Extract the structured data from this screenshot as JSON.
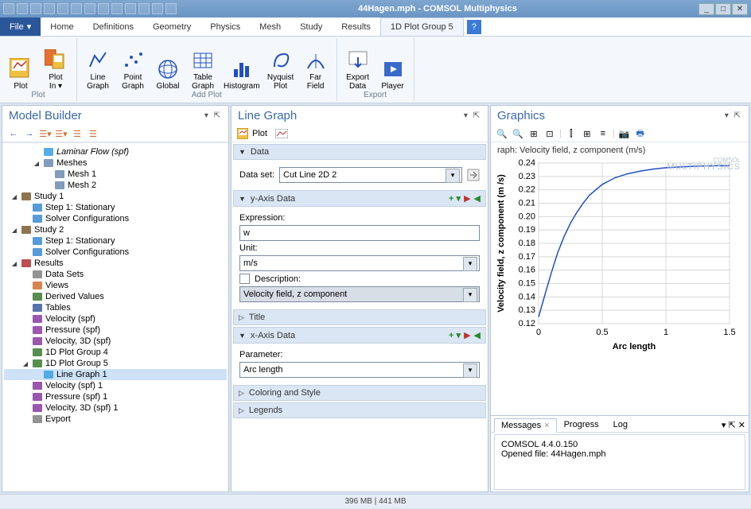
{
  "titlebar": {
    "title": "44Hagen.mph - COMSOL Multiphysics"
  },
  "menu": {
    "file": "File",
    "tabs": [
      "Home",
      "Definitions",
      "Geometry",
      "Physics",
      "Mesh",
      "Study",
      "Results"
    ],
    "active_tab": "1D Plot Group 5"
  },
  "ribbon": {
    "groups": [
      {
        "name": "Plot",
        "items": [
          {
            "l": "Plot"
          },
          {
            "l": "Plot\nIn"
          }
        ]
      },
      {
        "name": "Add Plot",
        "items": [
          {
            "l": "Line\nGraph"
          },
          {
            "l": "Point\nGraph"
          },
          {
            "l": "Global"
          },
          {
            "l": "Table\nGraph"
          },
          {
            "l": "Histogram"
          },
          {
            "l": "Nyquist\nPlot"
          },
          {
            "l": "Far\nField"
          }
        ]
      },
      {
        "name": "Export",
        "items": [
          {
            "l": "Export\nData"
          },
          {
            "l": "Player"
          }
        ]
      }
    ]
  },
  "model_builder": {
    "title": "Model Builder",
    "tree": [
      {
        "d": 2,
        "t": "",
        "l": "Laminar Flow (spf)",
        "it": 1,
        "c": "#3aa0e0"
      },
      {
        "d": 2,
        "t": "▲",
        "l": "Meshes",
        "c": "#6b8bb0"
      },
      {
        "d": 3,
        "t": "",
        "l": "Mesh 1",
        "c": "#6b8bb0"
      },
      {
        "d": 3,
        "t": "",
        "l": "Mesh 2",
        "c": "#6b8bb0"
      },
      {
        "d": 0,
        "t": "▲",
        "l": "Study 1",
        "c": "#7a5a30"
      },
      {
        "d": 1,
        "t": "",
        "l": "Step 1: Stationary",
        "c": "#3a8ad0"
      },
      {
        "d": 1,
        "t": "",
        "l": "Solver Configurations",
        "c": "#3a8ad0"
      },
      {
        "d": 0,
        "t": "▲",
        "l": "Study 2",
        "c": "#7a5a30"
      },
      {
        "d": 1,
        "t": "",
        "l": "Step 1: Stationary",
        "c": "#3a8ad0"
      },
      {
        "d": 1,
        "t": "",
        "l": "Solver Configurations",
        "c": "#3a8ad0"
      },
      {
        "d": 0,
        "t": "▲",
        "l": "Results",
        "c": "#b03030"
      },
      {
        "d": 1,
        "t": "",
        "l": "Data Sets",
        "c": "#808080"
      },
      {
        "d": 1,
        "t": "",
        "l": "Views",
        "c": "#d07030"
      },
      {
        "d": 1,
        "t": "",
        "l": "Derived Values",
        "c": "#3a7a30"
      },
      {
        "d": 1,
        "t": "",
        "l": "Tables",
        "c": "#3a5aa0"
      },
      {
        "d": 1,
        "t": "",
        "l": "Velocity (spf)",
        "c": "#8a3aa0"
      },
      {
        "d": 1,
        "t": "",
        "l": "Pressure (spf)",
        "c": "#8a3aa0"
      },
      {
        "d": 1,
        "t": "",
        "l": "Velocity, 3D (spf)",
        "c": "#8a3aa0"
      },
      {
        "d": 1,
        "t": "",
        "l": "1D Plot Group 4",
        "c": "#3a7a30"
      },
      {
        "d": 1,
        "t": "▲",
        "l": "1D Plot Group 5",
        "c": "#3a7a30"
      },
      {
        "d": 2,
        "t": "",
        "l": "Line Graph 1",
        "c": "#3aa0e0",
        "sel": 1
      },
      {
        "d": 1,
        "t": "",
        "l": "Velocity (spf) 1",
        "c": "#8a3aa0"
      },
      {
        "d": 1,
        "t": "",
        "l": "Pressure (spf) 1",
        "c": "#8a3aa0"
      },
      {
        "d": 1,
        "t": "",
        "l": "Velocity, 3D (spf) 1",
        "c": "#8a3aa0"
      },
      {
        "d": 1,
        "t": "",
        "l": "Evport",
        "c": "#808080"
      }
    ]
  },
  "line_graph": {
    "title": "Line Graph",
    "plot_label": "Plot",
    "data_section": "Data",
    "dataset_label": "Data set:",
    "dataset_value": "Cut Line 2D 2",
    "yaxis_section": "y-Axis Data",
    "expr_label": "Expression:",
    "expr_value": "w",
    "unit_label": "Unit:",
    "unit_value": "m/s",
    "desc_label": "Description:",
    "desc_value": "Velocity field, z component",
    "title_section": "Title",
    "xaxis_section": "x-Axis Data",
    "param_label": "Parameter:",
    "param_value": "Arc length",
    "coloring_section": "Coloring and Style",
    "legends_section": "Legends"
  },
  "graphics": {
    "title": "Graphics",
    "chart": {
      "title_text": "raph: Velocity field, z component (m/s)",
      "watermark": "COMSOL\nMULTIPHYSICS",
      "ylabel": "Velocity field, z component (m /s)",
      "xlabel": "Arc length",
      "xlim": [
        0,
        1.5
      ],
      "xtick_step": 0.5,
      "ylim": [
        0.12,
        0.24
      ],
      "ytick_step": 0.01,
      "line_color": "#2050c0",
      "grid_color": "#d8d8d8",
      "background_color": "#ffffff",
      "border_color": "#888888",
      "data": [
        [
          0,
          0.125
        ],
        [
          0.03,
          0.135
        ],
        [
          0.06,
          0.145
        ],
        [
          0.1,
          0.158
        ],
        [
          0.15,
          0.173
        ],
        [
          0.2,
          0.185
        ],
        [
          0.25,
          0.195
        ],
        [
          0.3,
          0.203
        ],
        [
          0.35,
          0.21
        ],
        [
          0.4,
          0.216
        ],
        [
          0.5,
          0.224
        ],
        [
          0.6,
          0.229
        ],
        [
          0.7,
          0.232
        ],
        [
          0.8,
          0.234
        ],
        [
          0.9,
          0.2355
        ],
        [
          1.0,
          0.2365
        ],
        [
          1.1,
          0.237
        ],
        [
          1.2,
          0.2375
        ],
        [
          1.3,
          0.2378
        ],
        [
          1.4,
          0.238
        ],
        [
          1.5,
          0.238
        ]
      ]
    }
  },
  "messages": {
    "tabs": [
      "Messages",
      "Progress",
      "Log"
    ],
    "lines": [
      "COMSOL 4.4.0.150",
      "Opened file: 44Hagen.mph"
    ]
  },
  "status": "396 MB | 441 MB"
}
